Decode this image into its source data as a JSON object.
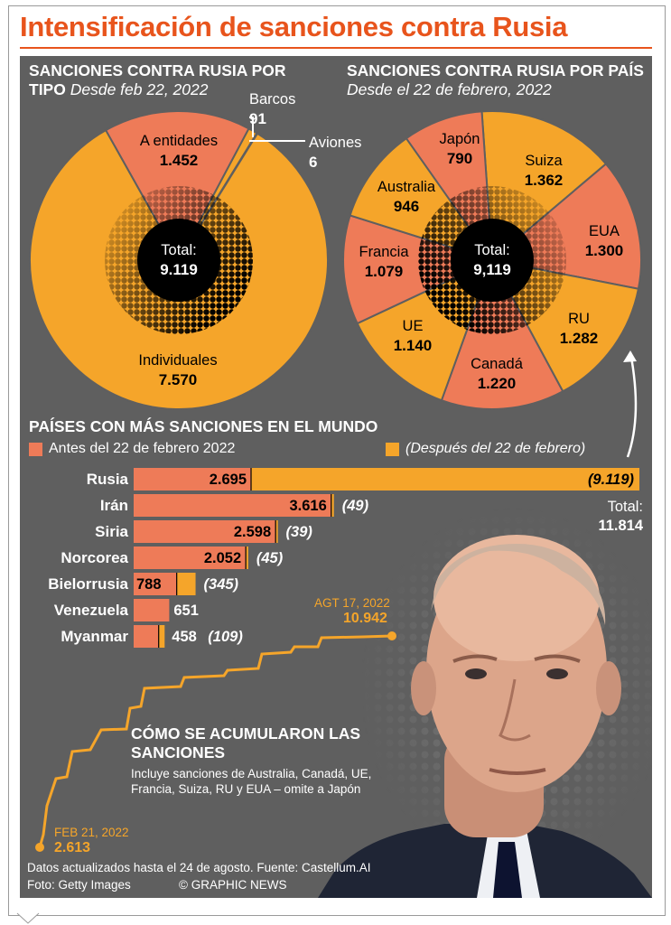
{
  "header": {
    "title": "Intensificación de sanciones contra Rusia"
  },
  "colors": {
    "orange": "#f5a52a",
    "salmon": "#ee7b58",
    "accent": "#e8541c",
    "panel": "#5f5f5f"
  },
  "chart_data": [
    {
      "type": "pie",
      "title": "SANCIONES CONTRA RUSIA POR TIPO",
      "subtitle": "Desde feb 22, 2022",
      "center_label": "Total:",
      "center_value": "9.119",
      "slices": [
        {
          "label": "Individuales",
          "value_text": "7.570",
          "value": 7570,
          "color": "#f5a52a"
        },
        {
          "label": "A entidades",
          "value_text": "1.452",
          "value": 1452,
          "color": "#ee7b58"
        },
        {
          "label": "Barcos",
          "value_text": "91",
          "value": 91,
          "color": "#f5a52a"
        },
        {
          "label": "Aviones",
          "value_text": "6",
          "value": 6,
          "color": "#ee7b58"
        }
      ]
    },
    {
      "type": "pie",
      "title": "SANCIONES CONTRA RUSIA POR PAÍS",
      "subtitle": "Desde el 22 de febrero, 2022",
      "center_label": "Total:",
      "center_value": "9,119",
      "slices": [
        {
          "label": "Suiza",
          "value_text": "1.362",
          "value": 1362,
          "color": "#f5a52a"
        },
        {
          "label": "EUA",
          "value_text": "1.300",
          "value": 1300,
          "color": "#ee7b58"
        },
        {
          "label": "RU",
          "value_text": "1.282",
          "value": 1282,
          "color": "#f5a52a"
        },
        {
          "label": "Canadá",
          "value_text": "1.220",
          "value": 1220,
          "color": "#ee7b58"
        },
        {
          "label": "UE",
          "value_text": "1.140",
          "value": 1140,
          "color": "#f5a52a"
        },
        {
          "label": "Francia",
          "value_text": "1.079",
          "value": 1079,
          "color": "#ee7b58"
        },
        {
          "label": "Australia",
          "value_text": "946",
          "value": 946,
          "color": "#f5a52a"
        },
        {
          "label": "Japón",
          "value_text": "790",
          "value": 790,
          "color": "#ee7b58"
        }
      ]
    },
    {
      "type": "bar",
      "title": "PAÍSES CON MÁS SANCIONES EN EL MUNDO",
      "legend": [
        {
          "name": "Antes del 22 de febrero 2022",
          "color": "#ee7b58"
        },
        {
          "name": "(Después del 22 de febrero)",
          "color": "#f5a52a"
        }
      ],
      "total_label": "Total:",
      "total_value": "11.814",
      "categories": [
        "Rusia",
        "Irán",
        "Siria",
        "Norcorea",
        "Bielorrusia",
        "Venezuela",
        "Myanmar"
      ],
      "series": [
        {
          "name": "Antes del 22 de febrero 2022",
          "values": [
            2695,
            3616,
            2598,
            2052,
            788,
            651,
            458
          ],
          "labels": [
            "2.695",
            "3.616",
            "2.598",
            "2.052",
            "788",
            "651",
            "458"
          ]
        },
        {
          "name": "(Después del 22 de febrero)",
          "values": [
            9119,
            49,
            39,
            45,
            345,
            0,
            109
          ],
          "labels": [
            "(9.119)",
            "(49)",
            "(39)",
            "(45)",
            "(345)",
            "",
            "(109)"
          ]
        }
      ]
    },
    {
      "type": "line",
      "title": "CÓMO SE ACUMULARON LAS SANCIONES",
      "note": "Incluye sanciones de Australia, Canadá, UE, Francia, Suiza, RU y  EUA – omite a Japón",
      "start": {
        "date": "FEB 21, 2022",
        "value_text": "2.613",
        "value": 2613
      },
      "end": {
        "date": "AGT 17, 2022",
        "value_text": "10.942",
        "value": 10942
      }
    }
  ],
  "footer": {
    "line1": "Datos actualizados hasta el 24 de agosto. Fuente: Castellum.AI",
    "photo": "Foto: Getty Images",
    "credit": "© GRAPHIC NEWS"
  }
}
